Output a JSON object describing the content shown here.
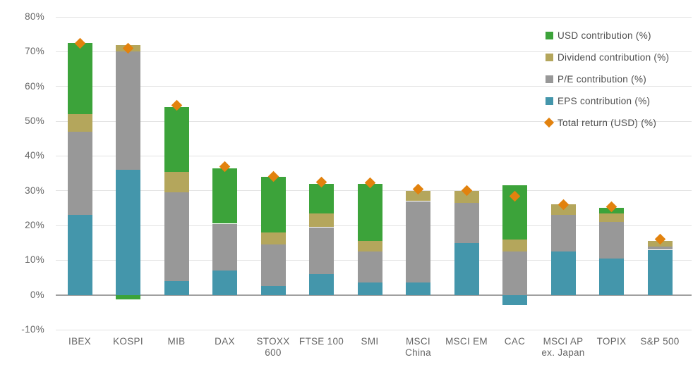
{
  "chart_data": {
    "type": "bar",
    "stacked": true,
    "title": "",
    "background": "#ffffff",
    "categories": [
      "IBEX",
      "KOSPI",
      "MIB",
      "DAX",
      "STOXX 600",
      "FTSE 100",
      "SMI",
      "MSCI China",
      "MSCI EM",
      "CAC",
      "MSCI AP ex. Japan",
      "TOPIX",
      "S&P 500"
    ],
    "category_label_lines": [
      [
        "IBEX"
      ],
      [
        "KOSPI"
      ],
      [
        "MIB"
      ],
      [
        "DAX"
      ],
      [
        "STOXX",
        "600"
      ],
      [
        "FTSE 100"
      ],
      [
        "SMI"
      ],
      [
        "MSCI",
        "China"
      ],
      [
        "MSCI EM"
      ],
      [
        "CAC"
      ],
      [
        "MSCI AP",
        "ex. Japan"
      ],
      [
        "TOPIX"
      ],
      [
        "S&P 500"
      ]
    ],
    "series": [
      {
        "name": "EPS contribution (%)",
        "key": "eps",
        "color": "#4496ab",
        "values": [
          23,
          36,
          4,
          7,
          2.5,
          6,
          3.5,
          3.5,
          15,
          -3,
          12.5,
          10.5,
          13
        ]
      },
      {
        "name": "P/E contribution (%)",
        "key": "pe",
        "color": "#989898",
        "values": [
          24,
          34,
          25.5,
          13.5,
          12,
          13.5,
          9,
          23.5,
          11.5,
          12.5,
          10.5,
          10.5,
          1
        ]
      },
      {
        "name": "Dividend contribution (%)",
        "key": "dividend",
        "color": "#b4a65c",
        "values": [
          5,
          2,
          6,
          0,
          3.5,
          4,
          3,
          3,
          3.5,
          3.5,
          3,
          2.5,
          1.5
        ]
      },
      {
        "name": "USD contribution (%)",
        "key": "usd",
        "color": "#3ca33a",
        "values": [
          20.5,
          -1.3,
          18.5,
          16,
          16,
          8.5,
          16.5,
          0,
          0,
          15.5,
          0,
          1.5,
          0
        ]
      }
    ],
    "marker_series": {
      "name": "Total return (USD) (%)",
      "key": "total-return",
      "color": "#e2820e",
      "shape": "diamond",
      "values": [
        72.5,
        71,
        54.5,
        37,
        34,
        32.5,
        32.3,
        30.5,
        30,
        28.5,
        26,
        25.3,
        16
      ]
    },
    "y_axis": {
      "min": -10,
      "max": 80,
      "tick_step": 10,
      "grid": true,
      "ticks": [
        {
          "value": 80,
          "label": "80%"
        },
        {
          "value": 70,
          "label": "70%"
        },
        {
          "value": 60,
          "label": "60%"
        },
        {
          "value": 50,
          "label": "50%"
        },
        {
          "value": 40,
          "label": "40%"
        },
        {
          "value": 30,
          "label": "30%"
        },
        {
          "value": 20,
          "label": "20%"
        },
        {
          "value": 10,
          "label": "10%"
        },
        {
          "value": 0,
          "label": "0%"
        },
        {
          "value": -10,
          "label": "-10%"
        }
      ]
    },
    "legend": {
      "position": "top-right",
      "items": [
        {
          "label": "USD contribution (%)",
          "shape": "square",
          "color": "#3ca33a"
        },
        {
          "label": "Dividend contribution (%)",
          "shape": "square",
          "color": "#b4a65c"
        },
        {
          "label": "P/E contribution (%)",
          "shape": "square",
          "color": "#989898"
        },
        {
          "label": "EPS contribution (%)",
          "shape": "square",
          "color": "#4496ab"
        },
        {
          "label": "Total return (USD) (%)",
          "shape": "diamond",
          "color": "#e2820e"
        }
      ]
    },
    "colors": {
      "gridline": "#e3e3e3",
      "zero_line": "#a0a0a0",
      "axis_text": "#666666",
      "legend_text": "#4d4d4d"
    }
  }
}
